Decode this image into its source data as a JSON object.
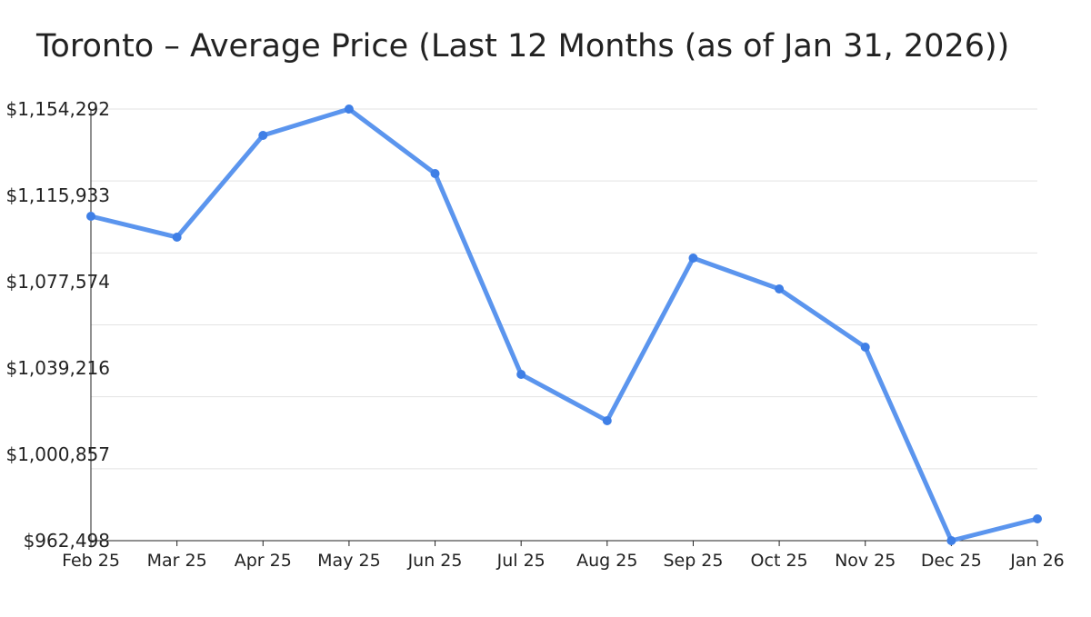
{
  "chart_data": {
    "type": "line",
    "title": "Toronto – Average Price (Last 12 Months (as of Jan 31, 2026))",
    "xlabel": "",
    "ylabel": "",
    "categories": [
      "Feb 25",
      "Mar 25",
      "Apr 25",
      "May 25",
      "Jun 25",
      "Jul 25",
      "Aug 25",
      "Sep 25",
      "Oct 25",
      "Nov 25",
      "Dec 25",
      "Jan 26"
    ],
    "series": [
      {
        "values": [
          1106644,
          1097356,
          1142582,
          1154292,
          1125622,
          1036382,
          1015789,
          1088069,
          1074340,
          1048496,
          962498,
          972189
        ]
      }
    ],
    "ylim": [
      962498,
      1154292
    ],
    "y_tick_labels": [
      "$962,498",
      "$1,000,857",
      "$1,039,216",
      "$1,077,574",
      "$1,115,933",
      "$1,154,292"
    ],
    "grid": true,
    "line_color": "#5b95ee",
    "marker_color": "#3f7fe6"
  }
}
